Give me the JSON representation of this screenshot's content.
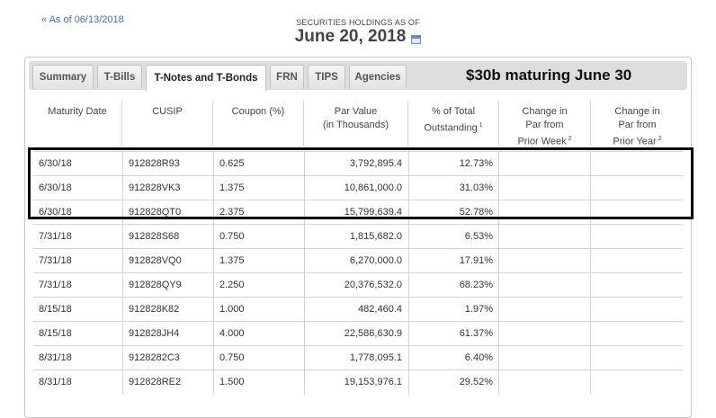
{
  "back_link": "« As of 06/13/2018",
  "header": {
    "label": "SECURITIES HOLDINGS AS OF",
    "date": "June 20, 2018"
  },
  "tabs": [
    {
      "label": "Summary",
      "active": false
    },
    {
      "label": "T-Bills",
      "active": false
    },
    {
      "label": "T-Notes and T-Bonds",
      "active": true
    },
    {
      "label": "FRN",
      "active": false
    },
    {
      "label": "TIPS",
      "active": false
    },
    {
      "label": "Agencies",
      "active": false
    }
  ],
  "banner": "$30b maturing June 30",
  "columns": [
    {
      "label": "Maturity Date",
      "sup": ""
    },
    {
      "label": "CUSIP",
      "sup": ""
    },
    {
      "label": "Coupon (%)",
      "sup": ""
    },
    {
      "label": "Par Value\n(in Thousands)",
      "sup": ""
    },
    {
      "label": "% of Total\nOutstanding",
      "sup": "1"
    },
    {
      "label": "Change in\nPar from\nPrior Week",
      "sup": "2"
    },
    {
      "label": "Change in\nPar from\nPrior Year",
      "sup": "2"
    }
  ],
  "rows": [
    {
      "date": "6/30/18",
      "cusip": "912828R93",
      "coupon": "0.625",
      "par": "3,792,895.4",
      "pct": "12.73%",
      "wk": "",
      "yr": ""
    },
    {
      "date": "6/30/18",
      "cusip": "912828VK3",
      "coupon": "1.375",
      "par": "10,861,000.0",
      "pct": "31.03%",
      "wk": "",
      "yr": ""
    },
    {
      "date": "6/30/18",
      "cusip": "912828QT0",
      "coupon": "2.375",
      "par": "15,799,639.4",
      "pct": "52.78%",
      "wk": "",
      "yr": ""
    },
    {
      "date": "7/31/18",
      "cusip": "912828S68",
      "coupon": "0.750",
      "par": "1,815,682.0",
      "pct": "6.53%",
      "wk": "",
      "yr": ""
    },
    {
      "date": "7/31/18",
      "cusip": "912828VQ0",
      "coupon": "1.375",
      "par": "6,270,000.0",
      "pct": "17.91%",
      "wk": "",
      "yr": ""
    },
    {
      "date": "7/31/18",
      "cusip": "912828QY9",
      "coupon": "2.250",
      "par": "20,376,532.0",
      "pct": "68.23%",
      "wk": "",
      "yr": ""
    },
    {
      "date": "8/15/18",
      "cusip": "912828K82",
      "coupon": "1.000",
      "par": "482,460.4",
      "pct": "1.97%",
      "wk": "",
      "yr": ""
    },
    {
      "date": "8/15/18",
      "cusip": "912828JH4",
      "coupon": "4.000",
      "par": "22,586,630.9",
      "pct": "61.37%",
      "wk": "",
      "yr": ""
    },
    {
      "date": "8/31/18",
      "cusip": "9128282C3",
      "coupon": "0.750",
      "par": "1,778,095.1",
      "pct": "6.40%",
      "wk": "",
      "yr": ""
    },
    {
      "date": "8/31/18",
      "cusip": "912828RE2",
      "coupon": "1.500",
      "par": "19,153,976.1",
      "pct": "29.52%",
      "wk": "",
      "yr": ""
    }
  ]
}
